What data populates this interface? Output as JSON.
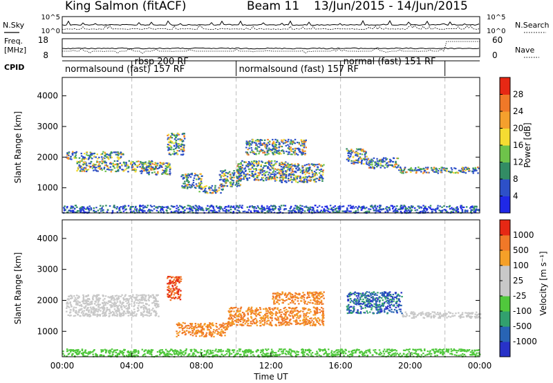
{
  "header": {
    "station": "King Salmon (fitACF)",
    "beam": "Beam 11",
    "date_range": "13/Jun/2015 - 14/Jun/2015"
  },
  "side_labels": {
    "nsky": "N.Sky",
    "freq_line1": "Freq.",
    "freq_line2": "[MHz]",
    "cpid": "CPID",
    "nsearch": "N.Search",
    "nave": "Nave"
  },
  "chart_data": [
    {
      "type": "line",
      "panel": "noise",
      "left_axis_ticks": [
        "10^5",
        "10^0"
      ],
      "right_axis_ticks": [
        "10^5",
        "10^0"
      ],
      "series": [
        {
          "name": "N.Sky"
        },
        {
          "name": "N.Search"
        }
      ]
    },
    {
      "type": "line",
      "panel": "frequency",
      "left_axis_ticks": [
        "18",
        "8"
      ],
      "right_axis_ticks": [
        "60",
        "0"
      ],
      "series": [
        {
          "name": "Freq."
        },
        {
          "name": "Nave"
        }
      ]
    },
    {
      "type": "table",
      "panel": "cpid",
      "segments": [
        {
          "label": "normalsound (fast) 157 RF",
          "start_h": 0,
          "end_h": 4
        },
        {
          "label": "rbsp 200 RF",
          "start_h": 4,
          "end_h": 10
        },
        {
          "label": "normalsound (fast) 157 RF",
          "start_h": 10,
          "end_h": 16
        },
        {
          "label": "normal (fast) 151 RF",
          "start_h": 16,
          "end_h": 22
        },
        {
          "label": "",
          "start_h": 22,
          "end_h": 24
        }
      ]
    },
    {
      "type": "heatmap",
      "panel": "power",
      "ylabel": "Slant Range [km]",
      "yticks": [
        1000,
        2000,
        3000,
        4000
      ],
      "ylim": [
        180,
        4600
      ],
      "xlim": [
        0,
        24
      ],
      "colorbar": {
        "label": "Power [dB]",
        "ticks": [
          "4",
          "8",
          "12",
          "16",
          "20",
          "24",
          "28"
        ],
        "colors": [
          "#1f28e6",
          "#2d50c8",
          "#328c64",
          "#6ec34a",
          "#f5dc32",
          "#f5a02d",
          "#f07828",
          "#e62814"
        ]
      },
      "scatter_bands": [
        {
          "x0": 0.2,
          "x1": 3.5,
          "y0": 1950,
          "y1": 2200
        },
        {
          "x0": 0.8,
          "x1": 5.2,
          "y0": 1550,
          "y1": 1900
        },
        {
          "x0": 4.5,
          "x1": 6.2,
          "y0": 1450,
          "y1": 1850
        },
        {
          "x0": 6.0,
          "x1": 7.0,
          "y0": 2100,
          "y1": 2800
        },
        {
          "x0": 6.8,
          "x1": 8.0,
          "y0": 1000,
          "y1": 1500
        },
        {
          "x0": 7.8,
          "x1": 9.2,
          "y0": 850,
          "y1": 1100
        },
        {
          "x0": 9.0,
          "x1": 10.2,
          "y0": 1050,
          "y1": 1600
        },
        {
          "x0": 10.0,
          "x1": 13.0,
          "y0": 1250,
          "y1": 1900
        },
        {
          "x0": 12.5,
          "x1": 15.0,
          "y0": 1200,
          "y1": 1800
        },
        {
          "x0": 10.5,
          "x1": 14.0,
          "y0": 2100,
          "y1": 2600
        },
        {
          "x0": 16.3,
          "x1": 17.5,
          "y0": 1800,
          "y1": 2300
        },
        {
          "x0": 17.5,
          "x1": 19.3,
          "y0": 1650,
          "y1": 2000
        },
        {
          "x0": 19.3,
          "x1": 24.0,
          "y0": 1500,
          "y1": 1700
        },
        {
          "x0": 0.0,
          "x1": 24.0,
          "y0": 200,
          "y1": 450
        }
      ],
      "series": []
    },
    {
      "type": "heatmap",
      "panel": "velocity",
      "ylabel": "Slant Range [km]",
      "yticks": [
        1000,
        2000,
        3000,
        4000
      ],
      "ylim": [
        180,
        4600
      ],
      "xlim": [
        0,
        24
      ],
      "xticks": [
        "00:00",
        "04:00",
        "08:00",
        "12:00",
        "16:00",
        "20:00",
        "00:00"
      ],
      "xlabel": "Time UT",
      "colorbar": {
        "label": "Velocity [m s⁻¹]",
        "ticks": [
          "1000",
          "500",
          "100",
          "25",
          "-25",
          "-100",
          "-500",
          "-1000"
        ],
        "colors": [
          "#2832c8",
          "#2864b4",
          "#32a06e",
          "#50c83c",
          "#c8c8c8",
          "#c8c8c8",
          "#f5a028",
          "#f07828",
          "#e62814"
        ]
      },
      "scatter_bands": [
        {
          "x0": 0.2,
          "x1": 5.5,
          "y0": 1500,
          "y1": 2200
        },
        {
          "x0": 6.0,
          "x1": 6.8,
          "y0": 2000,
          "y1": 2800
        },
        {
          "x0": 6.5,
          "x1": 9.5,
          "y0": 850,
          "y1": 1300
        },
        {
          "x0": 9.5,
          "x1": 15.0,
          "y0": 1200,
          "y1": 1800
        },
        {
          "x0": 12.0,
          "x1": 15.0,
          "y0": 1900,
          "y1": 2300
        },
        {
          "x0": 16.3,
          "x1": 19.5,
          "y0": 1600,
          "y1": 2300
        },
        {
          "x0": 19.5,
          "x1": 24.0,
          "y0": 1450,
          "y1": 1650
        },
        {
          "x0": 0.0,
          "x1": 24.0,
          "y0": 200,
          "y1": 450
        }
      ],
      "series": []
    }
  ]
}
